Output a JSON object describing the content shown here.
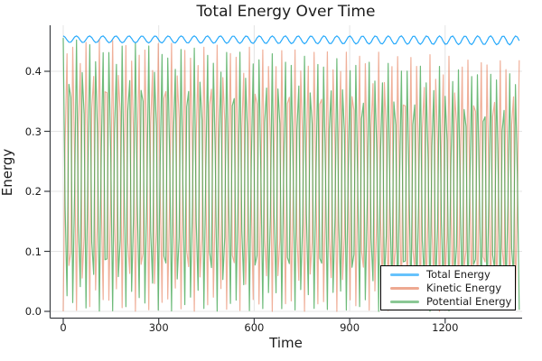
{
  "title": "Total Energy Over Time",
  "background_color": "#ffffff",
  "text_color": "#1c1c1c",
  "axis_color": "#3a3d42",
  "grid_color": "#e4e4e4",
  "x_axis": {
    "label": "Time",
    "tick_labels": [
      "0",
      "300",
      "600",
      "900",
      "1200"
    ],
    "tick_values": [
      0,
      300,
      600,
      900,
      1200
    ]
  },
  "y_axis": {
    "label": "Energy",
    "tick_labels": [
      "0.0",
      "0.1",
      "0.2",
      "0.3",
      "0.4"
    ],
    "tick_values": [
      0.0,
      0.1,
      0.2,
      0.3,
      0.4
    ]
  },
  "legend": {
    "swatch_alpha": 0.6,
    "border_color": "#000000",
    "background": "#ffffff",
    "entries": [
      {
        "label": "Total Energy",
        "color": "#009AFA"
      },
      {
        "label": "Kinetic Energy",
        "color": "#E36F47"
      },
      {
        "label": "Potential Energy",
        "color": "#3EA44E"
      }
    ]
  },
  "chart_data": {
    "type": "line",
    "title": "Total Energy Over Time",
    "xlabel": "Time",
    "ylabel": "Energy",
    "xlim": [
      -40,
      1440
    ],
    "ylim": [
      -0.011,
      0.477
    ],
    "grid": true,
    "legend_position": "bottom-right",
    "x_sampling": {
      "start": 0,
      "end": 1436,
      "step": 5.97
    },
    "oscillator": {
      "omega0": 0.15177,
      "chirp": 4e-06
    },
    "series": [
      {
        "name": "total",
        "label": "Total Energy",
        "color": "#009AFA",
        "alpha": 0.85,
        "kind": "ripple",
        "base": 0.459,
        "ripple_amp_start": 0.011,
        "ripple_amp_end": 0.015
      },
      {
        "name": "kinetic",
        "label": "Kinetic Energy",
        "color": "#E36F47",
        "alpha": 0.55,
        "kind": "sin2",
        "amp_start": 0.4555,
        "amp_end": 0.4211
      },
      {
        "name": "potential",
        "label": "Potential Energy",
        "color": "#3EA44E",
        "alpha": 0.75,
        "kind": "cos2",
        "amp_start": 0.4555,
        "amp_end": 0.398
      }
    ],
    "notes": "Kinetic and potential energy oscillate in antiphase between 0 and ~0.455 (period ~20.7 time units), with peak envelopes decaying to ~0.42 and ~0.40 by t~1436; total energy remains ~0.445-0.459 with a shallow scalloped ripple (period ~41.4). Undersampled plotting produces moire/beat textures in the right half."
  }
}
